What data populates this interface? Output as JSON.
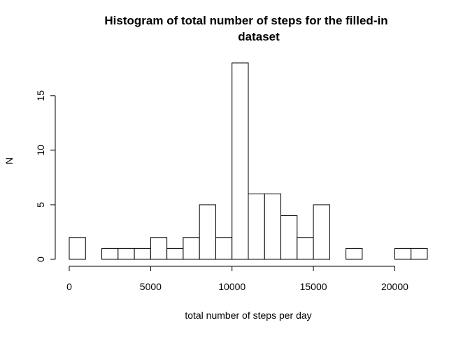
{
  "chart_data": {
    "type": "bar",
    "title_line1": "Histogram of total number of steps for the filled-in",
    "title_line2": "dataset",
    "xlabel": "total number of steps per day",
    "ylabel": "N",
    "bin_width": 1000,
    "xlim": [
      0,
      22000
    ],
    "ylim": [
      0,
      18
    ],
    "bins": [
      {
        "x0": 0,
        "x1": 1000,
        "count": 2
      },
      {
        "x0": 1000,
        "x1": 2000,
        "count": 0
      },
      {
        "x0": 2000,
        "x1": 3000,
        "count": 1
      },
      {
        "x0": 3000,
        "x1": 4000,
        "count": 1
      },
      {
        "x0": 4000,
        "x1": 5000,
        "count": 1
      },
      {
        "x0": 5000,
        "x1": 6000,
        "count": 2
      },
      {
        "x0": 6000,
        "x1": 7000,
        "count": 1
      },
      {
        "x0": 7000,
        "x1": 8000,
        "count": 2
      },
      {
        "x0": 8000,
        "x1": 9000,
        "count": 5
      },
      {
        "x0": 9000,
        "x1": 10000,
        "count": 2
      },
      {
        "x0": 10000,
        "x1": 11000,
        "count": 18
      },
      {
        "x0": 11000,
        "x1": 12000,
        "count": 6
      },
      {
        "x0": 12000,
        "x1": 13000,
        "count": 6
      },
      {
        "x0": 13000,
        "x1": 14000,
        "count": 4
      },
      {
        "x0": 14000,
        "x1": 15000,
        "count": 2
      },
      {
        "x0": 15000,
        "x1": 16000,
        "count": 5
      },
      {
        "x0": 16000,
        "x1": 17000,
        "count": 0
      },
      {
        "x0": 17000,
        "x1": 18000,
        "count": 1
      },
      {
        "x0": 18000,
        "x1": 19000,
        "count": 0
      },
      {
        "x0": 19000,
        "x1": 20000,
        "count": 0
      },
      {
        "x0": 20000,
        "x1": 21000,
        "count": 1
      },
      {
        "x0": 21000,
        "x1": 22000,
        "count": 1
      }
    ],
    "x_ticks": [
      0,
      5000,
      10000,
      15000,
      20000
    ],
    "y_ticks": [
      0,
      5,
      10,
      15
    ],
    "grid": false
  }
}
